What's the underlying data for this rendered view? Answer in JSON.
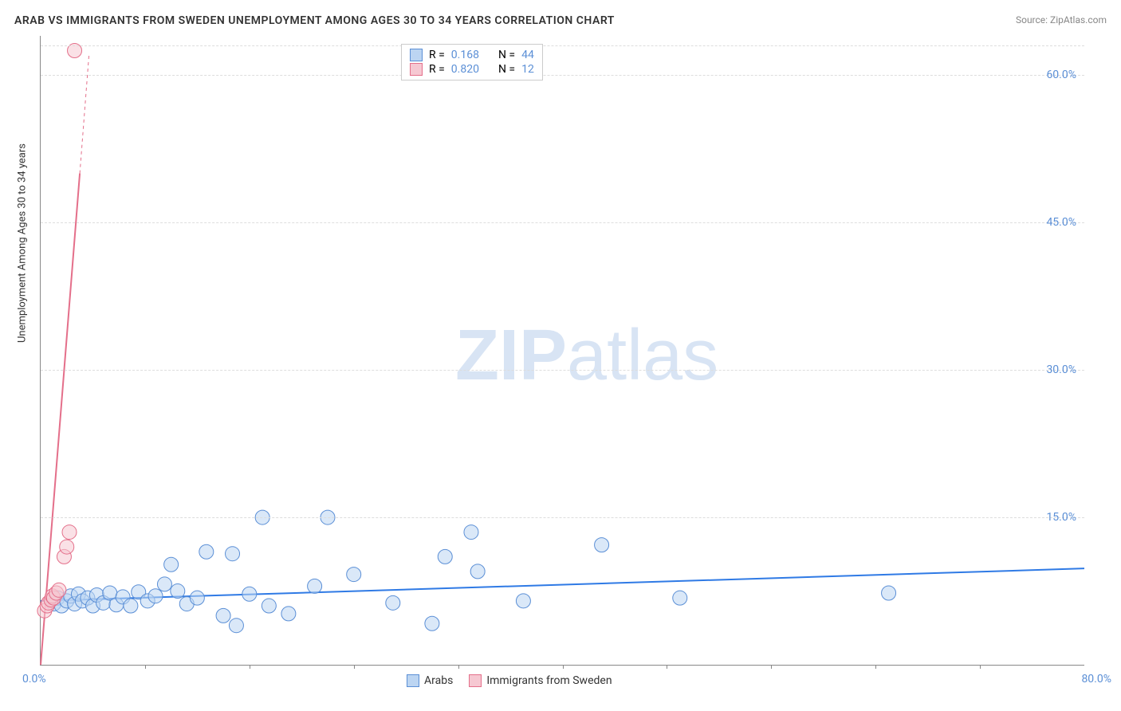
{
  "title": "ARAB VS IMMIGRANTS FROM SWEDEN UNEMPLOYMENT AMONG AGES 30 TO 34 YEARS CORRELATION CHART",
  "source": "Source: ZipAtlas.com",
  "watermark": {
    "bold": "ZIP",
    "light": "atlas"
  },
  "y_axis_label": "Unemployment Among Ages 30 to 34 years",
  "legend_top": {
    "rows": [
      {
        "color_fill": "#bcd5f2",
        "color_stroke": "#5b8fd6",
        "r_label": "R =",
        "r_value": "0.168",
        "n_label": "N =",
        "n_value": "44"
      },
      {
        "color_fill": "#f6c8d2",
        "color_stroke": "#e46f8a",
        "r_label": "R =",
        "r_value": "0.820",
        "n_label": "N =",
        "n_value": "12"
      }
    ]
  },
  "legend_bottom": {
    "items": [
      {
        "label": "Arabs",
        "fill": "#bcd5f2",
        "stroke": "#5b8fd6"
      },
      {
        "label": "Immigrants from Sweden",
        "fill": "#f6c8d2",
        "stroke": "#e46f8a"
      }
    ]
  },
  "chart": {
    "type": "scatter",
    "xlim": [
      0,
      80
    ],
    "ylim": [
      0,
      64
    ],
    "x_ticks": [
      0,
      8,
      16,
      24,
      32,
      40,
      48,
      56,
      64,
      72,
      80
    ],
    "y_gridlines": [
      15,
      30,
      45,
      60
    ],
    "y_tick_labels": [
      "15.0%",
      "30.0%",
      "45.0%",
      "60.0%"
    ],
    "x_origin_label": "0.0%",
    "x_end_label": "80.0%",
    "background_color": "#ffffff",
    "grid_color": "#dddddd",
    "axis_color": "#888888",
    "series": [
      {
        "name": "Arabs",
        "fill": "#bcd5f2",
        "stroke": "#5b8fd6",
        "fill_opacity": 0.55,
        "marker_r": 9,
        "points": [
          [
            1,
            6.2
          ],
          [
            1.3,
            6.8
          ],
          [
            1.6,
            6.0
          ],
          [
            2,
            6.5
          ],
          [
            2.3,
            7.0
          ],
          [
            2.6,
            6.2
          ],
          [
            2.9,
            7.2
          ],
          [
            3.2,
            6.5
          ],
          [
            3.6,
            6.8
          ],
          [
            4,
            6.0
          ],
          [
            4.3,
            7.1
          ],
          [
            4.8,
            6.3
          ],
          [
            5.3,
            7.3
          ],
          [
            5.8,
            6.1
          ],
          [
            6.3,
            6.9
          ],
          [
            6.9,
            6.0
          ],
          [
            7.5,
            7.4
          ],
          [
            8.2,
            6.5
          ],
          [
            8.8,
            7.0
          ],
          [
            9.5,
            8.2
          ],
          [
            10,
            10.2
          ],
          [
            10.5,
            7.5
          ],
          [
            11.2,
            6.2
          ],
          [
            12,
            6.8
          ],
          [
            12.7,
            11.5
          ],
          [
            14,
            5.0
          ],
          [
            14.7,
            11.3
          ],
          [
            15,
            4.0
          ],
          [
            16,
            7.2
          ],
          [
            17,
            15.0
          ],
          [
            17.5,
            6.0
          ],
          [
            19,
            5.2
          ],
          [
            21,
            8.0
          ],
          [
            22,
            15.0
          ],
          [
            24,
            9.2
          ],
          [
            27,
            6.3
          ],
          [
            30,
            4.2
          ],
          [
            31,
            11.0
          ],
          [
            33.5,
            9.5
          ],
          [
            33,
            13.5
          ],
          [
            37,
            6.5
          ],
          [
            43,
            12.2
          ],
          [
            49,
            6.8
          ],
          [
            65,
            7.3
          ]
        ],
        "trend": {
          "x1": 0,
          "y1": 6.5,
          "x2": 80,
          "y2": 9.8,
          "color": "#2f7ae5",
          "width": 2
        }
      },
      {
        "name": "Immigrants from Sweden",
        "fill": "#f6c8d2",
        "stroke": "#e46f8a",
        "fill_opacity": 0.55,
        "marker_r": 9,
        "points": [
          [
            0.3,
            5.5
          ],
          [
            0.5,
            6.0
          ],
          [
            0.6,
            6.3
          ],
          [
            0.8,
            6.6
          ],
          [
            0.9,
            7.0
          ],
          [
            1.0,
            6.8
          ],
          [
            1.2,
            7.3
          ],
          [
            1.4,
            7.6
          ],
          [
            1.8,
            11.0
          ],
          [
            2.0,
            12.0
          ],
          [
            2.2,
            13.5
          ],
          [
            2.6,
            62.5
          ]
        ],
        "trend": {
          "x1": 0,
          "y1": 0,
          "x2": 3.0,
          "y2": 50,
          "extend_x": 3.7,
          "extend_y": 62,
          "color": "#e46f8a",
          "width": 2
        }
      }
    ]
  }
}
